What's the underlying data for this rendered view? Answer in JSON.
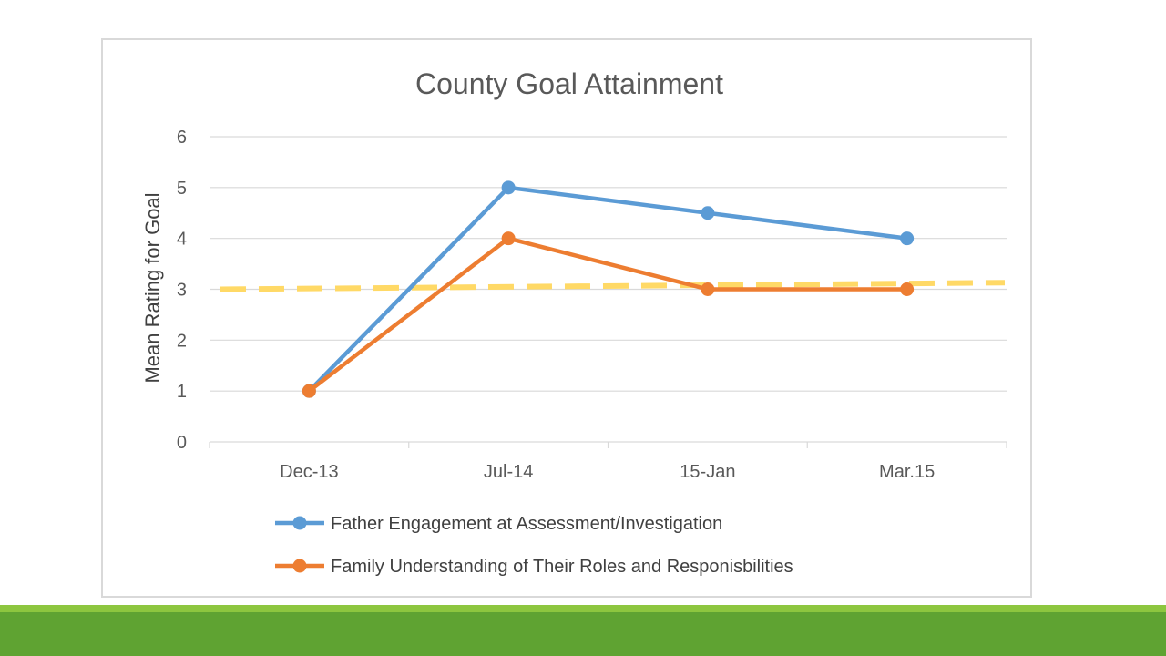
{
  "colors": {
    "series1": "#5b9bd5",
    "series2": "#ed7d31",
    "reference": "#ffd966",
    "gridline": "#d9d9d9",
    "band_light": "#8dc63f",
    "band_dark": "#5fa332"
  },
  "chart_data": {
    "type": "line",
    "title": "County Goal Attainment",
    "xlabel": "",
    "ylabel": "Mean Rating for Goal",
    "categories": [
      "Dec-13",
      "Jul-14",
      "15-Jan",
      "Mar.15"
    ],
    "ylim": [
      0,
      6
    ],
    "yticks": [
      0,
      1,
      2,
      3,
      4,
      5,
      6
    ],
    "grid": true,
    "legend_position": "bottom",
    "series": [
      {
        "name": "Father Engagement at Assessment/Investigation",
        "values": [
          1,
          5,
          4.5,
          4
        ]
      },
      {
        "name": "Family Understanding of Their  Roles and Responisbilities",
        "values": [
          1,
          4,
          3,
          3
        ]
      }
    ],
    "reference_line": {
      "style": "dashed",
      "values": [
        3.0,
        3.13
      ]
    }
  }
}
